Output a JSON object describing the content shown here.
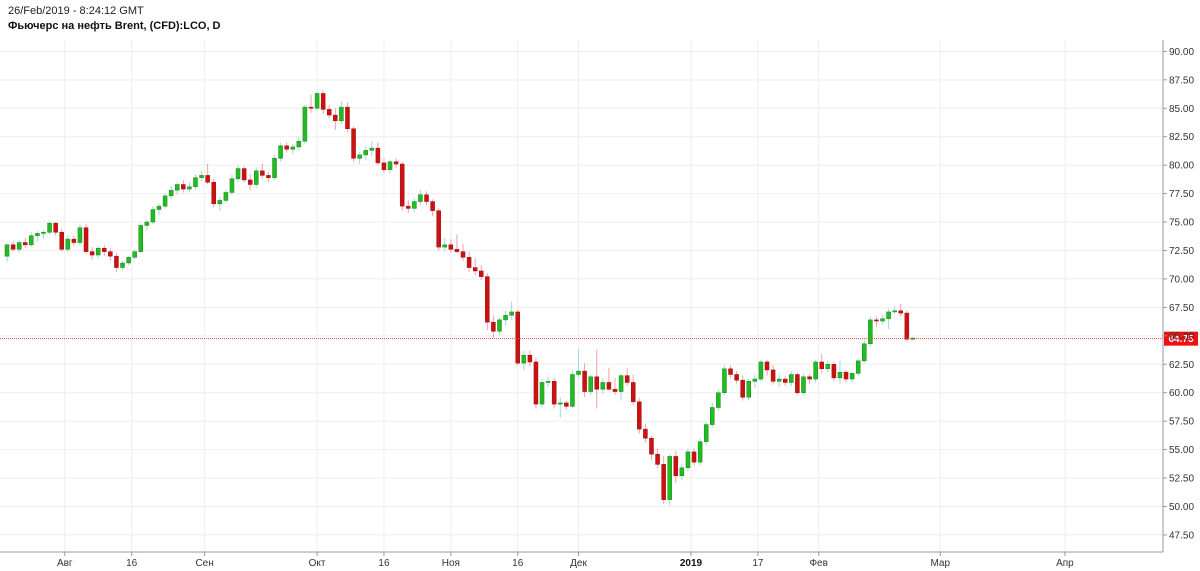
{
  "header": {
    "timestamp": "26/Feb/2019 - 8:24:12 GMT",
    "title": "Фьючерс на нефть Brent, (CFD):LCO, D"
  },
  "chart_data": {
    "type": "candlestick",
    "ylim": [
      46,
      91
    ],
    "yticks": [
      47.5,
      50.0,
      52.5,
      55.0,
      57.5,
      60.0,
      62.5,
      65.0,
      67.5,
      70.0,
      72.5,
      75.0,
      77.5,
      80.0,
      82.5,
      85.0,
      87.5,
      90.0
    ],
    "current_price": 64.75,
    "current_price_label": "64.75",
    "colors": {
      "up": "#22bb22",
      "down": "#cc1111",
      "price_line": "#ee4444",
      "grid": "#eeeeee"
    },
    "x_labels": [
      {
        "label": "Авг",
        "index": 9.5,
        "bold": false
      },
      {
        "label": "16",
        "index": 20.5,
        "bold": false
      },
      {
        "label": "Сен",
        "index": 32.5,
        "bold": false
      },
      {
        "label": "Окт",
        "index": 51,
        "bold": false
      },
      {
        "label": "16",
        "index": 62,
        "bold": false
      },
      {
        "label": "Ноя",
        "index": 73,
        "bold": false
      },
      {
        "label": "16",
        "index": 84,
        "bold": false
      },
      {
        "label": "Дек",
        "index": 94,
        "bold": false
      },
      {
        "label": "2019",
        "index": 112.5,
        "bold": true
      },
      {
        "label": "17",
        "index": 123.5,
        "bold": false
      },
      {
        "label": "Фев",
        "index": 133.5,
        "bold": false
      },
      {
        "label": "Мар",
        "index": 153.5,
        "bold": false
      },
      {
        "label": "Апр",
        "index": 174,
        "bold": false
      }
    ],
    "candles": [
      [
        72.0,
        73.1,
        71.5,
        73.0
      ],
      [
        73.0,
        73.3,
        72.4,
        72.6
      ],
      [
        72.6,
        73.4,
        72.3,
        73.2
      ],
      [
        73.2,
        73.6,
        72.7,
        73.0
      ],
      [
        73.0,
        74.1,
        72.8,
        73.8
      ],
      [
        73.8,
        74.2,
        73.3,
        74.0
      ],
      [
        74.0,
        74.3,
        73.5,
        74.1
      ],
      [
        74.1,
        75.1,
        73.9,
        74.9
      ],
      [
        74.9,
        75.0,
        73.8,
        74.1
      ],
      [
        74.1,
        74.4,
        72.4,
        72.6
      ],
      [
        72.6,
        73.8,
        72.4,
        73.5
      ],
      [
        73.5,
        73.8,
        72.9,
        73.2
      ],
      [
        73.2,
        74.8,
        73.0,
        74.5
      ],
      [
        74.5,
        74.8,
        72.2,
        72.4
      ],
      [
        72.4,
        72.8,
        71.7,
        72.1
      ],
      [
        72.1,
        72.9,
        71.8,
        72.7
      ],
      [
        72.7,
        73.0,
        72.0,
        72.4
      ],
      [
        72.4,
        72.7,
        71.6,
        72.0
      ],
      [
        72.0,
        72.3,
        70.6,
        71.0
      ],
      [
        71.0,
        71.6,
        70.8,
        71.4
      ],
      [
        71.4,
        72.0,
        71.2,
        71.9
      ],
      [
        71.9,
        72.6,
        71.7,
        72.4
      ],
      [
        72.4,
        74.9,
        72.3,
        74.7
      ],
      [
        74.7,
        75.2,
        74.3,
        75.0
      ],
      [
        75.0,
        76.4,
        74.8,
        76.1
      ],
      [
        76.1,
        76.6,
        75.6,
        76.4
      ],
      [
        76.4,
        77.5,
        76.2,
        77.3
      ],
      [
        77.3,
        78.2,
        77.0,
        77.8
      ],
      [
        77.8,
        78.5,
        77.4,
        78.3
      ],
      [
        78.3,
        78.7,
        77.6,
        77.9
      ],
      [
        77.9,
        78.5,
        77.6,
        78.1
      ],
      [
        78.1,
        79.2,
        77.8,
        78.9
      ],
      [
        78.9,
        79.5,
        78.6,
        79.1
      ],
      [
        79.1,
        80.1,
        78.3,
        78.5
      ],
      [
        78.5,
        78.8,
        76.3,
        76.6
      ],
      [
        76.6,
        77.2,
        76.0,
        76.9
      ],
      [
        76.9,
        77.8,
        76.7,
        77.6
      ],
      [
        77.6,
        79.2,
        77.4,
        78.8
      ],
      [
        78.8,
        80.0,
        78.5,
        79.7
      ],
      [
        79.7,
        79.9,
        78.5,
        78.7
      ],
      [
        78.7,
        79.2,
        77.8,
        78.3
      ],
      [
        78.3,
        79.8,
        78.0,
        79.5
      ],
      [
        79.5,
        80.1,
        78.8,
        79.1
      ],
      [
        79.1,
        79.4,
        78.5,
        78.9
      ],
      [
        78.9,
        80.9,
        78.7,
        80.6
      ],
      [
        80.6,
        82.0,
        80.3,
        81.7
      ],
      [
        81.7,
        82.0,
        81.1,
        81.4
      ],
      [
        81.4,
        81.9,
        81.0,
        81.6
      ],
      [
        81.6,
        82.4,
        81.3,
        82.1
      ],
      [
        82.1,
        85.3,
        81.9,
        85.1
      ],
      [
        85.1,
        86.2,
        84.6,
        85.0
      ],
      [
        85.0,
        86.5,
        84.8,
        86.3
      ],
      [
        86.3,
        86.6,
        84.5,
        84.9
      ],
      [
        84.9,
        85.3,
        84.1,
        84.4
      ],
      [
        84.4,
        85.0,
        83.1,
        83.9
      ],
      [
        83.9,
        85.6,
        83.6,
        85.1
      ],
      [
        85.1,
        85.5,
        82.9,
        83.2
      ],
      [
        83.2,
        83.4,
        80.3,
        80.6
      ],
      [
        80.6,
        81.2,
        80.1,
        80.9
      ],
      [
        80.9,
        81.7,
        80.4,
        81.3
      ],
      [
        81.3,
        82.1,
        80.8,
        81.5
      ],
      [
        81.5,
        82.0,
        80.0,
        80.2
      ],
      [
        80.2,
        80.6,
        79.3,
        79.6
      ],
      [
        79.6,
        80.5,
        79.3,
        80.3
      ],
      [
        80.3,
        80.6,
        79.8,
        80.1
      ],
      [
        80.1,
        80.3,
        76.0,
        76.4
      ],
      [
        76.4,
        76.9,
        75.8,
        76.2
      ],
      [
        76.2,
        77.1,
        75.9,
        76.8
      ],
      [
        76.8,
        77.8,
        76.5,
        77.4
      ],
      [
        77.4,
        77.7,
        76.5,
        76.8
      ],
      [
        76.8,
        77.0,
        75.5,
        76.0
      ],
      [
        76.0,
        76.2,
        72.5,
        72.8
      ],
      [
        72.8,
        73.6,
        72.4,
        73.0
      ],
      [
        73.0,
        73.5,
        72.3,
        72.6
      ],
      [
        72.6,
        73.9,
        72.3,
        72.4
      ],
      [
        72.4,
        73.1,
        71.6,
        71.9
      ],
      [
        71.9,
        72.4,
        70.6,
        71.0
      ],
      [
        71.0,
        71.8,
        70.3,
        70.7
      ],
      [
        70.7,
        71.2,
        69.9,
        70.2
      ],
      [
        70.2,
        70.5,
        65.5,
        66.2
      ],
      [
        66.2,
        66.8,
        64.8,
        65.4
      ],
      [
        65.4,
        66.6,
        65.1,
        66.4
      ],
      [
        66.4,
        67.2,
        65.9,
        66.8
      ],
      [
        66.8,
        68.0,
        66.4,
        67.1
      ],
      [
        67.1,
        67.3,
        62.4,
        62.6
      ],
      [
        62.6,
        63.7,
        62.0,
        63.3
      ],
      [
        63.3,
        63.7,
        62.3,
        62.7
      ],
      [
        62.7,
        63.1,
        58.6,
        59.0
      ],
      [
        59.0,
        61.2,
        58.7,
        60.9
      ],
      [
        60.9,
        61.4,
        60.5,
        61.0
      ],
      [
        61.0,
        61.3,
        58.6,
        59.0
      ],
      [
        59.0,
        59.6,
        57.8,
        59.1
      ],
      [
        59.1,
        59.3,
        58.5,
        58.8
      ],
      [
        58.8,
        61.9,
        58.6,
        61.6
      ],
      [
        61.6,
        63.8,
        61.3,
        61.9
      ],
      [
        61.9,
        62.6,
        59.6,
        60.1
      ],
      [
        60.1,
        61.6,
        59.8,
        61.4
      ],
      [
        61.4,
        63.8,
        58.6,
        60.3
      ],
      [
        60.3,
        61.3,
        59.9,
        60.9
      ],
      [
        60.9,
        62.2,
        60.2,
        60.3
      ],
      [
        60.3,
        61.3,
        59.8,
        60.1
      ],
      [
        60.1,
        61.6,
        59.3,
        61.5
      ],
      [
        61.5,
        62.2,
        60.6,
        60.9
      ],
      [
        60.9,
        61.6,
        58.9,
        59.2
      ],
      [
        59.2,
        59.5,
        56.4,
        56.8
      ],
      [
        56.8,
        57.3,
        55.6,
        56.0
      ],
      [
        56.0,
        56.2,
        54.1,
        54.6
      ],
      [
        54.6,
        55.1,
        53.4,
        53.7
      ],
      [
        53.7,
        54.4,
        50.2,
        50.6
      ],
      [
        50.6,
        54.6,
        50.1,
        54.4
      ],
      [
        54.4,
        54.9,
        52.1,
        52.7
      ],
      [
        52.7,
        53.8,
        52.3,
        53.4
      ],
      [
        53.4,
        55.1,
        53.1,
        54.8
      ],
      [
        54.8,
        55.1,
        53.6,
        53.9
      ],
      [
        53.9,
        56.0,
        53.6,
        55.7
      ],
      [
        55.7,
        57.4,
        55.4,
        57.2
      ],
      [
        57.2,
        59.1,
        56.9,
        58.7
      ],
      [
        58.7,
        60.3,
        58.4,
        60.0
      ],
      [
        60.0,
        62.4,
        59.8,
        62.1
      ],
      [
        62.1,
        62.4,
        61.3,
        61.6
      ],
      [
        61.6,
        61.9,
        60.8,
        61.1
      ],
      [
        61.1,
        61.5,
        59.3,
        59.6
      ],
      [
        59.6,
        61.2,
        59.3,
        61.0
      ],
      [
        61.0,
        61.6,
        60.4,
        61.2
      ],
      [
        61.2,
        62.9,
        61.0,
        62.7
      ],
      [
        62.7,
        62.9,
        61.5,
        62.0
      ],
      [
        62.0,
        62.4,
        60.7,
        61.0
      ],
      [
        61.0,
        61.6,
        60.5,
        61.2
      ],
      [
        61.2,
        61.5,
        60.6,
        60.9
      ],
      [
        60.9,
        61.9,
        60.6,
        61.6
      ],
      [
        61.6,
        61.8,
        59.8,
        60.0
      ],
      [
        60.0,
        61.6,
        59.8,
        61.4
      ],
      [
        61.4,
        61.6,
        60.8,
        61.2
      ],
      [
        61.2,
        62.9,
        60.9,
        62.7
      ],
      [
        62.7,
        63.4,
        61.7,
        62.1
      ],
      [
        62.1,
        62.8,
        61.8,
        62.5
      ],
      [
        62.5,
        62.7,
        61.0,
        61.3
      ],
      [
        61.3,
        62.8,
        60.8,
        61.8
      ],
      [
        61.8,
        62.0,
        60.9,
        61.2
      ],
      [
        61.2,
        61.8,
        60.9,
        61.7
      ],
      [
        61.7,
        63.0,
        61.5,
        62.8
      ],
      [
        62.8,
        64.6,
        62.6,
        64.3
      ],
      [
        64.3,
        66.7,
        64.1,
        66.4
      ],
      [
        66.4,
        66.7,
        65.8,
        66.3
      ],
      [
        66.3,
        66.8,
        66.0,
        66.5
      ],
      [
        66.5,
        67.4,
        65.6,
        67.1
      ],
      [
        67.1,
        67.6,
        66.9,
        67.2
      ],
      [
        67.2,
        67.8,
        66.7,
        67.0
      ],
      [
        67.0,
        67.2,
        64.5,
        64.7
      ],
      [
        64.7,
        64.9,
        64.6,
        64.8
      ]
    ]
  }
}
